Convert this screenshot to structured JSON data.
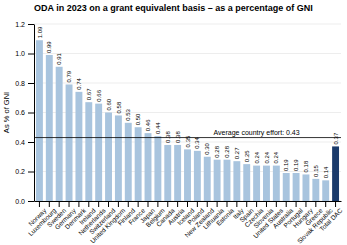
{
  "chart_data": {
    "type": "bar",
    "title": "ODA in 2023 on a grant equivalent basis – as a percentage of GNI",
    "ylabel": "As % of GNI",
    "categories": [
      "Norway",
      "Luxembourg",
      "Sweden",
      "Germany",
      "Denmark",
      "Ireland",
      "Netherlands",
      "Switzerland",
      "United Kingdom",
      "Finland",
      "France",
      "Japan",
      "Belgium",
      "Canada",
      "Austria",
      "Iceland",
      "Poland",
      "New Zealand",
      "Lithuania",
      "Estonia",
      "Italy",
      "Spain",
      "Czechia",
      "Slovenia",
      "United States",
      "Australia",
      "Portugal",
      "Hungary",
      "Greece",
      "Slovak Republic",
      "Total DAC"
    ],
    "values": [
      1.09,
      0.99,
      0.91,
      0.79,
      0.74,
      0.67,
      0.66,
      0.6,
      0.58,
      0.53,
      0.5,
      0.46,
      0.44,
      0.38,
      0.38,
      0.35,
      0.34,
      0.3,
      0.28,
      0.28,
      0.27,
      0.25,
      0.24,
      0.24,
      0.24,
      0.19,
      0.19,
      0.18,
      0.15,
      0.14,
      0.37
    ],
    "value_labels": [
      "1.09",
      "0.99",
      "0.91",
      "0.79",
      "0.74",
      "0.67",
      "0.66",
      "0.60",
      "0.58",
      "0.53",
      "0.50",
      "0.46",
      "0.44",
      "0.38",
      "0.38",
      "0.35",
      "0.34",
      "0.30",
      "0.28",
      "0.28",
      "0.27",
      "0.25",
      "0.24",
      "0.24",
      "0.24",
      "0.19",
      "0.19",
      "0.18",
      "0.15",
      "0.14",
      "0.37"
    ],
    "data_labels": true,
    "colors": [
      "#a8c4de",
      "#a8c4de",
      "#a8c4de",
      "#a8c4de",
      "#a8c4de",
      "#a8c4de",
      "#a8c4de",
      "#a8c4de",
      "#a8c4de",
      "#a8c4de",
      "#a8c4de",
      "#a8c4de",
      "#a8c4de",
      "#a8c4de",
      "#a8c4de",
      "#a8c4de",
      "#a8c4de",
      "#a8c4de",
      "#a8c4de",
      "#a8c4de",
      "#a8c4de",
      "#a8c4de",
      "#a8c4de",
      "#a8c4de",
      "#a8c4de",
      "#a8c4de",
      "#a8c4de",
      "#a8c4de",
      "#a8c4de",
      "#a8c4de",
      "#1a3a6b"
    ],
    "reference_line": {
      "value": 0.43,
      "label": "Average country effort: 0.43"
    },
    "ylim": [
      0,
      1.2
    ],
    "yticks": [
      {
        "value": 0,
        "label": "0.0"
      },
      0.2,
      0.4,
      0.6,
      0.8,
      {
        "value": 1,
        "label": "1.0"
      },
      1.2
    ],
    "grid": true
  }
}
